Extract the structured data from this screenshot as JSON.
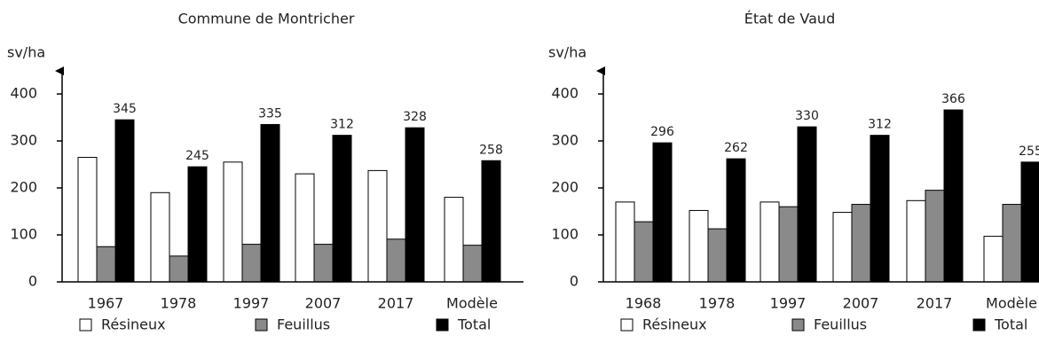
{
  "chart_data": [
    {
      "type": "bar",
      "title": "Commune de Montricher",
      "ylabel": "sv/ha",
      "categories": [
        "1967",
        "1978",
        "1997",
        "2007",
        "2017",
        "Modèle"
      ],
      "series": [
        {
          "name": "Résineux",
          "color": "#ffffff",
          "values": [
            265,
            190,
            255,
            230,
            237,
            180
          ]
        },
        {
          "name": "Feuillus",
          "color": "#8a8a8a",
          "values": [
            75,
            55,
            80,
            80,
            91,
            78
          ]
        },
        {
          "name": "Total",
          "color": "#000000",
          "values": [
            345,
            245,
            335,
            312,
            328,
            258
          ]
        }
      ],
      "ylim": [
        0,
        400
      ],
      "yticks": [
        0,
        100,
        200,
        300,
        400
      ],
      "data_labels_series": "Total"
    },
    {
      "type": "bar",
      "title": "État de Vaud",
      "ylabel": "sv/ha",
      "categories": [
        "1968",
        "1978",
        "1997",
        "2007",
        "2017",
        "Modèle"
      ],
      "series": [
        {
          "name": "Résineux",
          "color": "#ffffff",
          "values": [
            170,
            152,
            170,
            148,
            173,
            97
          ]
        },
        {
          "name": "Feuillus",
          "color": "#8a8a8a",
          "values": [
            128,
            113,
            160,
            165,
            195,
            165
          ]
        },
        {
          "name": "Total",
          "color": "#000000",
          "values": [
            296,
            262,
            330,
            312,
            366,
            255
          ]
        }
      ],
      "ylim": [
        0,
        400
      ],
      "yticks": [
        0,
        100,
        200,
        300,
        400
      ],
      "data_labels_series": "Total"
    }
  ]
}
